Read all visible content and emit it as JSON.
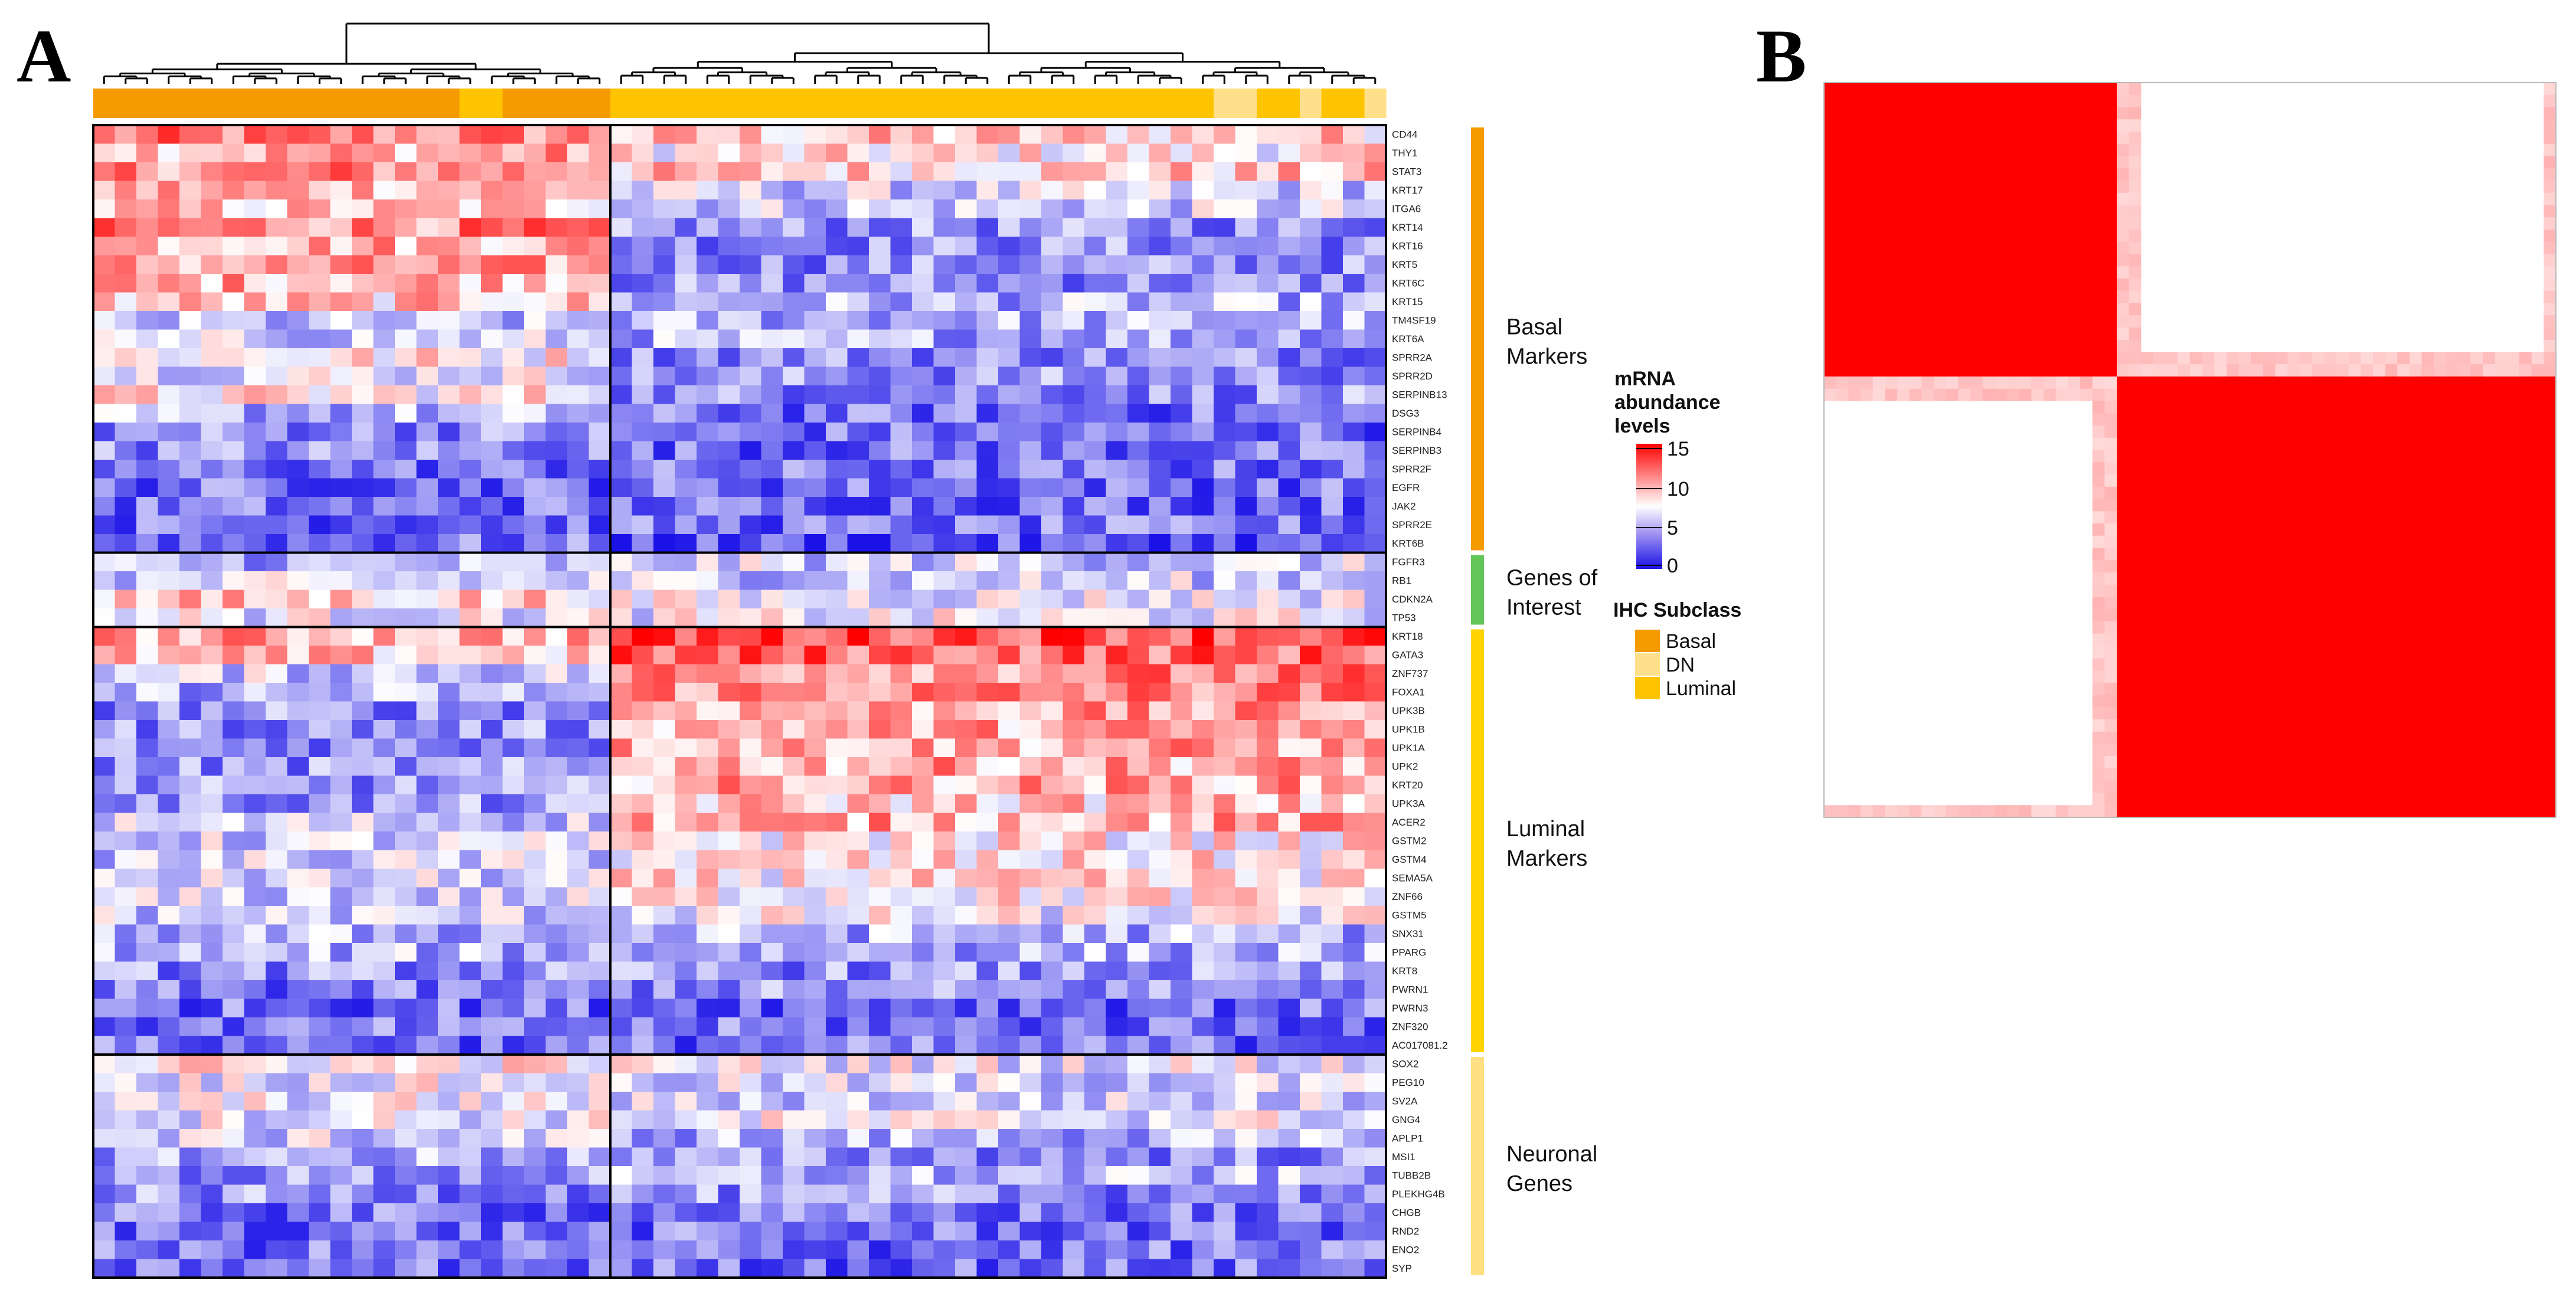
{
  "panels": {
    "a_label": "A",
    "b_label": "B"
  },
  "colors": {
    "low": "#1a12e6",
    "mid": "#ffffff",
    "high": "#ff0000",
    "basal": "#f59a00",
    "dn": "#ffe08a",
    "luminal": "#ffc400",
    "interest": "#62c656",
    "luminal_group": "#ffd300",
    "neuronal_group": "#ffe082"
  },
  "chart_data": [
    {
      "type": "heatmap",
      "panel": "A",
      "samples_count": 60,
      "sample_subclass": [
        "Basal",
        "Basal",
        "Basal",
        "Basal",
        "Basal",
        "Basal",
        "Basal",
        "Basal",
        "Basal",
        "Basal",
        "Basal",
        "Basal",
        "Basal",
        "Basal",
        "Basal",
        "Basal",
        "Basal",
        "Luminal",
        "Luminal",
        "Basal",
        "Basal",
        "Basal",
        "Basal",
        "Basal",
        "Luminal",
        "Luminal",
        "Luminal",
        "Luminal",
        "Luminal",
        "Luminal",
        "Luminal",
        "Luminal",
        "Luminal",
        "Luminal",
        "Luminal",
        "Luminal",
        "Luminal",
        "Luminal",
        "Luminal",
        "Luminal",
        "Luminal",
        "Luminal",
        "Luminal",
        "Luminal",
        "Luminal",
        "Luminal",
        "Luminal",
        "Luminal",
        "Luminal",
        "Luminal",
        "Luminal",
        "Luminal",
        "DN",
        "DN",
        "Luminal",
        "Luminal",
        "DN",
        "Luminal",
        "Luminal",
        "DN"
      ],
      "column_split_after": 24,
      "gene_groups": [
        {
          "label_line1": "Basal",
          "label_line2": "Markers",
          "color": "basal",
          "genes": [
            "CD44",
            "THY1",
            "STAT3",
            "KRT17",
            "ITGA6",
            "KRT14",
            "KRT16",
            "KRT5",
            "KRT6C",
            "KRT15",
            "TM4SF19",
            "KRT6A",
            "SPRR2A",
            "SPRR2D",
            "SERPINB13",
            "DSG3",
            "SERPINB4",
            "SERPINB3",
            "SPRR2F",
            "EGFR",
            "JAK2",
            "SPRR2E",
            "KRT6B"
          ],
          "basal_cluster_mean": [
            11,
            10,
            11,
            10,
            9,
            11,
            10,
            10,
            10,
            9,
            5,
            6,
            8,
            7,
            8,
            5,
            4,
            4,
            3,
            3,
            3,
            3,
            3
          ],
          "luminal_cluster_mean": [
            9,
            8,
            9,
            6,
            6,
            4,
            4,
            4,
            4,
            5,
            5,
            5,
            4,
            4,
            4,
            3,
            3,
            3,
            3,
            3,
            3,
            3,
            2
          ]
        },
        {
          "label_line1": "Genes of",
          "label_line2": "Interest",
          "color": "interest",
          "genes": [
            "FGFR3",
            "RB1",
            "CDKN2A",
            "TP53"
          ],
          "basal_cluster_mean": [
            5,
            6,
            9,
            7
          ],
          "luminal_cluster_mean": [
            6,
            6,
            7,
            7
          ]
        },
        {
          "label_line1": "Luminal",
          "label_line2": "Markers",
          "color": "luminal_group",
          "genes": [
            "KRT18",
            "GATA3",
            "ZNF737",
            "FOXA1",
            "UPK3B",
            "UPK1B",
            "UPK1A",
            "UPK2",
            "KRT20",
            "UPK3A",
            "ACER2",
            "GSTM2",
            "GSTM4",
            "SEMA5A",
            "ZNF66",
            "GSTM5",
            "SNX31",
            "PPARG",
            "KRT8",
            "PWRN1",
            "PWRN3",
            "ZNF320",
            "AC017081.2"
          ],
          "basal_cluster_mean": [
            10,
            9,
            6,
            5,
            4,
            4,
            4,
            4,
            4,
            4,
            6,
            6,
            6,
            6,
            6,
            6,
            5,
            5,
            4,
            3,
            3,
            3,
            3
          ],
          "luminal_cluster_mean": [
            13,
            12,
            11,
            11,
            10,
            10,
            10,
            10,
            10,
            9,
            10,
            8,
            8,
            8,
            8,
            7,
            5,
            5,
            4,
            4,
            3,
            3,
            3
          ]
        },
        {
          "label_line1": "Neuronal",
          "label_line2": "Genes",
          "color": "neuronal_group",
          "genes": [
            "SOX2",
            "PEG10",
            "SV2A",
            "GNG4",
            "APLP1",
            "MSI1",
            "TUBB2B",
            "PLEKHG4B",
            "CHGB",
            "RND2",
            "ENO2",
            "SYP"
          ],
          "basal_cluster_mean": [
            8,
            7,
            7,
            7,
            6,
            5,
            4,
            4,
            3,
            3,
            3,
            3
          ],
          "luminal_cluster_mean": [
            7,
            6,
            6,
            7,
            5,
            4,
            5,
            4,
            3,
            3,
            3,
            3
          ]
        }
      ],
      "colorbar": {
        "title": [
          "mRNA",
          "abundance",
          "levels"
        ],
        "min": 0,
        "max": 15,
        "ticks": [
          "0",
          "5",
          "10",
          "15"
        ]
      },
      "subclass_legend": {
        "title": "IHC Subclass",
        "entries": [
          {
            "label": "Basal",
            "color": "basal"
          },
          {
            "label": "DN",
            "color": "dn"
          },
          {
            "label": "Luminal",
            "color": "luminal"
          }
        ]
      }
    },
    {
      "type": "heatmap",
      "panel": "B",
      "description_values": "consensus matrix, two blocks",
      "blocks": [
        {
          "samples": 24,
          "value": 1.0
        },
        {
          "samples": 36,
          "value": 1.0
        }
      ],
      "off_block_value": 0.0,
      "total_samples": 60
    }
  ]
}
